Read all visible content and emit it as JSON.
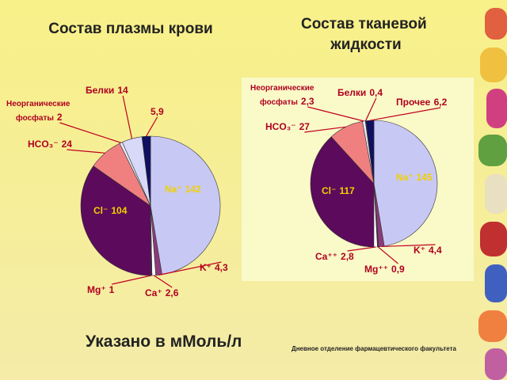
{
  "chart_data": [
    {
      "type": "pie",
      "title": "Состав плазмы крови",
      "categories": [
        "Na⁺",
        "K⁺",
        "Ca⁺",
        "Mg⁺",
        "Cl⁻",
        "HCO₃⁻",
        "Неорганические фосфаты",
        "Белки",
        null
      ],
      "values": [
        142,
        4.3,
        2.6,
        1,
        104,
        24,
        2,
        14,
        5.9
      ],
      "value_labels": [
        "142",
        "4,3",
        "2,6",
        "1",
        "104",
        "24",
        "2",
        "14",
        "5,9"
      ],
      "colors": [
        "#c8c8f4",
        "#8b3a7a",
        "#ffffff",
        "#502060",
        "#5c0a5c",
        "#f08080",
        "#e8e8f8",
        "#d8d8f8",
        "#101060"
      ]
    },
    {
      "type": "pie",
      "title": "Состав тканевой жидкости",
      "categories": [
        "Na⁺",
        "K⁺",
        "Mg⁺⁺",
        "Ca⁺⁺",
        "Cl⁻",
        "HCO₃⁻",
        "Неорганические фосфаты",
        "Белки",
        "Прочее"
      ],
      "values": [
        145,
        4.4,
        0.9,
        2.8,
        117,
        27,
        2.3,
        0.4,
        6.2
      ],
      "value_labels": [
        "145",
        "4,4",
        "0,9",
        "2,8",
        "117",
        "27",
        "2,3",
        "0,4",
        "6,2"
      ],
      "colors": [
        "#c8c8f4",
        "#8b3a7a",
        "#502060",
        "#ffffff",
        "#5c0a5c",
        "#f08080",
        "#e8e8f8",
        "#1a1a50",
        "#101060"
      ]
    }
  ],
  "note": "Указано в мМоль/л",
  "footer": "Дневное отделение фармацевтического факультета"
}
